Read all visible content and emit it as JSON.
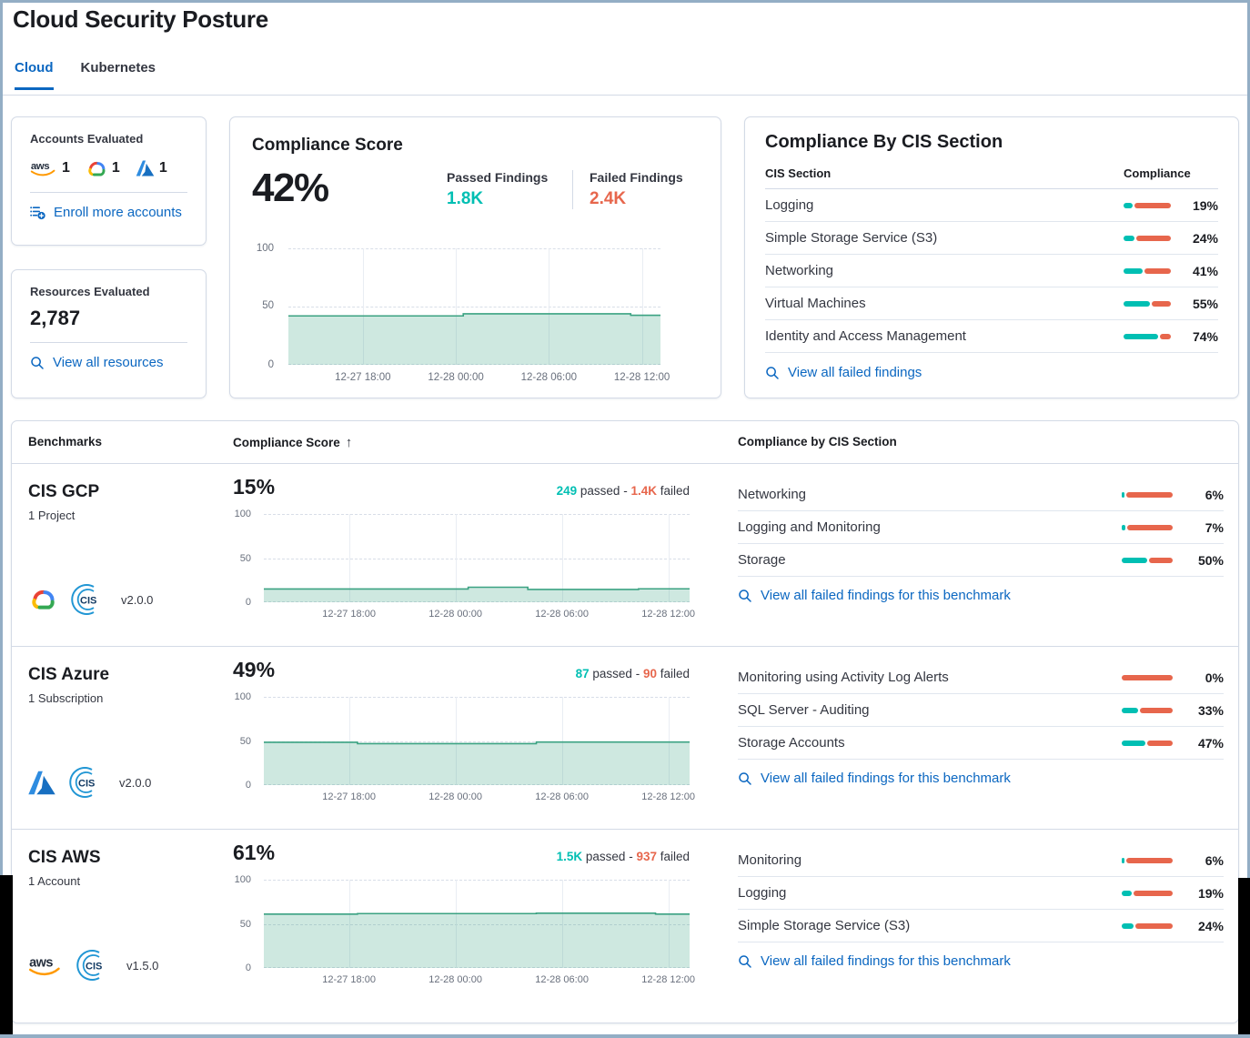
{
  "header": {
    "title": "Cloud Security Posture"
  },
  "tabs": [
    {
      "label": "Cloud"
    },
    {
      "label": "Kubernetes"
    }
  ],
  "accounts": {
    "title": "Accounts Evaluated",
    "items": [
      {
        "provider": "aws",
        "count": "1"
      },
      {
        "provider": "gcp",
        "count": "1"
      },
      {
        "provider": "azure",
        "count": "1"
      }
    ],
    "link": "Enroll more accounts"
  },
  "resources": {
    "title": "Resources Evaluated",
    "value": "2,787",
    "link": "View all resources"
  },
  "score": {
    "title": "Compliance Score",
    "value": "42%",
    "passed_label": "Passed Findings",
    "passed_value": "1.8K",
    "failed_label": "Failed Findings",
    "failed_value": "2.4K"
  },
  "cis": {
    "title": "Compliance By CIS Section",
    "col_section": "CIS Section",
    "col_compliance": "Compliance",
    "rows": [
      {
        "label": "Logging",
        "pct": 19,
        "pct_label": "19%"
      },
      {
        "label": "Simple Storage Service (S3)",
        "pct": 24,
        "pct_label": "24%"
      },
      {
        "label": "Networking",
        "pct": 41,
        "pct_label": "41%"
      },
      {
        "label": "Virtual Machines",
        "pct": 55,
        "pct_label": "55%"
      },
      {
        "label": "Identity and Access Management",
        "pct": 74,
        "pct_label": "74%"
      }
    ],
    "link": "View all failed findings"
  },
  "bench": {
    "col_benchmarks": "Benchmarks",
    "col_score": "Compliance Score",
    "sort_icon": "↑",
    "col_sections": "Compliance by CIS Section",
    "link": "View all failed findings for this benchmark",
    "rows": [
      {
        "name": "CIS GCP",
        "subtitle": "1 Project",
        "provider": "gcp",
        "version": "v2.0.0",
        "score": "15%",
        "passed": "249",
        "passed_text": " passed - ",
        "failed": "1.4K",
        "failed_text": " failed",
        "sections": [
          {
            "label": "Networking",
            "pct": 6,
            "pct_label": "6%"
          },
          {
            "label": "Logging and Monitoring",
            "pct": 7,
            "pct_label": "7%"
          },
          {
            "label": "Storage",
            "pct": 50,
            "pct_label": "50%"
          }
        ]
      },
      {
        "name": "CIS Azure",
        "subtitle": "1 Subscription",
        "provider": "azure",
        "version": "v2.0.0",
        "score": "49%",
        "passed": "87",
        "passed_text": " passed - ",
        "failed": "90",
        "failed_text": " failed",
        "sections": [
          {
            "label": "Monitoring using Activity Log Alerts",
            "pct": 0,
            "pct_label": "0%"
          },
          {
            "label": "SQL Server - Auditing",
            "pct": 33,
            "pct_label": "33%"
          },
          {
            "label": "Storage Accounts",
            "pct": 47,
            "pct_label": "47%"
          }
        ]
      },
      {
        "name": "CIS AWS",
        "subtitle": "1 Account",
        "provider": "aws",
        "version": "v1.5.0",
        "score": "61%",
        "passed": "1.5K",
        "passed_text": " passed - ",
        "failed": "937",
        "failed_text": " failed",
        "sections": [
          {
            "label": "Monitoring",
            "pct": 6,
            "pct_label": "6%"
          },
          {
            "label": "Logging",
            "pct": 19,
            "pct_label": "19%"
          },
          {
            "label": "Simple Storage Service (S3)",
            "pct": 24,
            "pct_label": "24%"
          }
        ]
      }
    ]
  },
  "charts": {
    "x_ticks": [
      "12-27 18:00",
      "12-28 00:00",
      "12-28 06:00",
      "12-28 12:00"
    ],
    "y_ticks": [
      "100",
      "50",
      "0"
    ],
    "main": {
      "points": [
        [
          0,
          42
        ],
        [
          47,
          42
        ],
        [
          47,
          43.8
        ],
        [
          92,
          43.8
        ],
        [
          92,
          42.5
        ],
        [
          100,
          42.5
        ]
      ]
    },
    "gcp": {
      "points": [
        [
          0,
          15
        ],
        [
          48,
          15
        ],
        [
          48,
          17
        ],
        [
          62,
          17
        ],
        [
          62,
          14.5
        ],
        [
          88,
          14.5
        ],
        [
          88,
          15.2
        ],
        [
          100,
          15.2
        ]
      ]
    },
    "azure": {
      "points": [
        [
          0,
          48.5
        ],
        [
          22,
          48.5
        ],
        [
          22,
          47
        ],
        [
          64,
          47
        ],
        [
          64,
          48.8
        ],
        [
          100,
          48.8
        ]
      ]
    },
    "aws": {
      "points": [
        [
          0,
          61
        ],
        [
          22,
          61
        ],
        [
          22,
          61.6
        ],
        [
          64,
          61.6
        ],
        [
          64,
          62
        ],
        [
          92,
          62
        ],
        [
          92,
          61
        ],
        [
          100,
          61
        ]
      ]
    }
  },
  "colors": {
    "passed": "#00BFB3",
    "failed": "#E7664C",
    "link": "#0b67c1",
    "line": "#3ba282"
  }
}
